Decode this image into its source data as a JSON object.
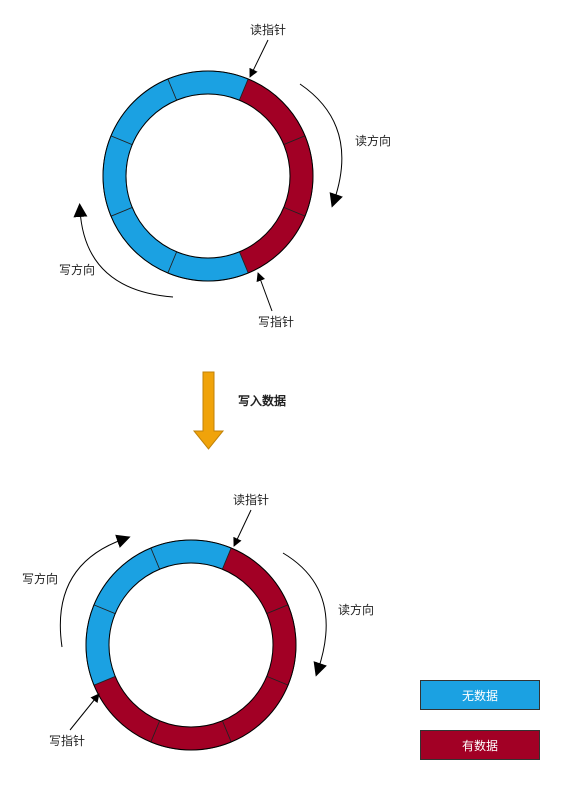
{
  "colors": {
    "empty": "#1BA1E2",
    "filled": "#A20025",
    "arrow_body": "#F0A30A",
    "arrow_stroke": "#C08208",
    "outline": "#000000"
  },
  "top_ring": {
    "read_pointer_label": "读指针",
    "write_pointer_label": "写指针",
    "read_direction_label": "读方向",
    "write_direction_label": "写方向",
    "segments": [
      "empty",
      "filled",
      "filled",
      "filled",
      "empty",
      "empty",
      "empty",
      "empty"
    ],
    "filled_count": 3,
    "total_segments": 8
  },
  "transition": {
    "label": "写入数据",
    "icon": "down-arrow-icon"
  },
  "bottom_ring": {
    "read_pointer_label": "读指针",
    "write_pointer_label": "写指针",
    "read_direction_label": "读方向",
    "write_direction_label": "写方向",
    "segments": [
      "empty",
      "filled",
      "filled",
      "filled",
      "filled",
      "filled",
      "empty",
      "empty"
    ],
    "filled_count": 5,
    "total_segments": 8
  },
  "legend": {
    "empty_label": "无数据",
    "filled_label": "有数据"
  }
}
